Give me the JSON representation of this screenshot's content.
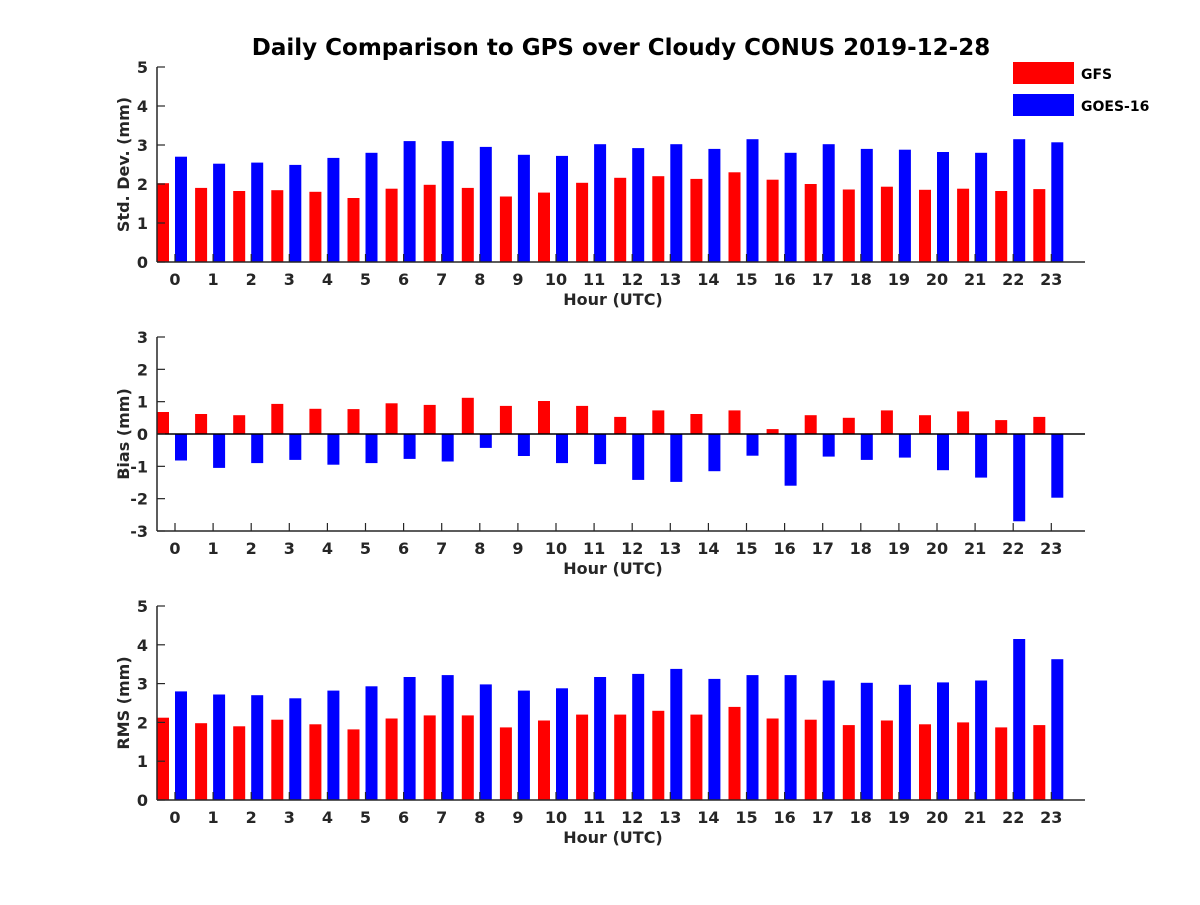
{
  "title": "Daily Comparison to GPS over Cloudy CONUS 2019-12-28",
  "legend": [
    {
      "name": "GFS",
      "color": "#ff0000"
    },
    {
      "name": "GOES-16",
      "color": "#0000ff"
    }
  ],
  "chart_data": [
    {
      "type": "bar",
      "ylabel": "Std. Dev. (mm)",
      "xlabel": "Hour (UTC)",
      "ylim": [
        0,
        5
      ],
      "yticks": [
        "0",
        "1",
        "2",
        "3",
        "4",
        "5"
      ],
      "categories": [
        "0",
        "1",
        "2",
        "3",
        "4",
        "5",
        "6",
        "7",
        "8",
        "9",
        "10",
        "11",
        "12",
        "13",
        "14",
        "15",
        "16",
        "17",
        "18",
        "19",
        "20",
        "21",
        "22",
        "23"
      ],
      "series": [
        {
          "name": "GFS",
          "color": "#ff0000",
          "values": [
            2.02,
            1.9,
            1.82,
            1.84,
            1.8,
            1.64,
            1.88,
            1.98,
            1.9,
            1.68,
            1.78,
            2.03,
            2.16,
            2.2,
            2.13,
            2.3,
            2.11,
            2.0,
            1.86,
            1.93,
            1.85,
            1.88,
            1.82,
            1.87
          ]
        },
        {
          "name": "GOES-16",
          "color": "#0000ff",
          "values": [
            2.7,
            2.52,
            2.55,
            2.49,
            2.67,
            2.8,
            3.1,
            3.1,
            2.95,
            2.75,
            2.72,
            3.02,
            2.92,
            3.02,
            2.9,
            3.15,
            2.8,
            3.02,
            2.9,
            2.88,
            2.82,
            2.8,
            3.15,
            3.07
          ]
        }
      ],
      "legend_position": "top-right"
    },
    {
      "type": "bar",
      "ylabel": "Bias (mm)",
      "xlabel": "Hour (UTC)",
      "ylim": [
        -3,
        3
      ],
      "yticks": [
        "-3",
        "-2",
        "-1",
        "0",
        "1",
        "2",
        "3"
      ],
      "zero_line": true,
      "categories": [
        "0",
        "1",
        "2",
        "3",
        "4",
        "5",
        "6",
        "7",
        "8",
        "9",
        "10",
        "11",
        "12",
        "13",
        "14",
        "15",
        "16",
        "17",
        "18",
        "19",
        "20",
        "21",
        "22",
        "23"
      ],
      "series": [
        {
          "name": "GFS",
          "color": "#ff0000",
          "values": [
            0.68,
            0.62,
            0.58,
            0.93,
            0.78,
            0.77,
            0.95,
            0.9,
            1.12,
            0.87,
            1.02,
            0.87,
            0.53,
            0.73,
            0.62,
            0.73,
            0.15,
            0.58,
            0.5,
            0.73,
            0.58,
            0.7,
            0.43,
            0.53
          ]
        },
        {
          "name": "GOES-16",
          "color": "#0000ff",
          "values": [
            -0.82,
            -1.05,
            -0.9,
            -0.8,
            -0.95,
            -0.9,
            -0.77,
            -0.85,
            -0.43,
            -0.68,
            -0.9,
            -0.93,
            -1.42,
            -1.48,
            -1.15,
            -0.67,
            -1.6,
            -0.7,
            -0.8,
            -0.73,
            -1.12,
            -1.35,
            -2.7,
            -1.97
          ]
        }
      ]
    },
    {
      "type": "bar",
      "ylabel": "RMS (mm)",
      "xlabel": "Hour (UTC)",
      "ylim": [
        0,
        5
      ],
      "yticks": [
        "0",
        "1",
        "2",
        "3",
        "4",
        "5"
      ],
      "categories": [
        "0",
        "1",
        "2",
        "3",
        "4",
        "5",
        "6",
        "7",
        "8",
        "9",
        "10",
        "11",
        "12",
        "13",
        "14",
        "15",
        "16",
        "17",
        "18",
        "19",
        "20",
        "21",
        "22",
        "23"
      ],
      "series": [
        {
          "name": "GFS",
          "color": "#ff0000",
          "values": [
            2.12,
            1.98,
            1.9,
            2.07,
            1.95,
            1.82,
            2.1,
            2.18,
            2.18,
            1.87,
            2.05,
            2.2,
            2.2,
            2.3,
            2.2,
            2.4,
            2.1,
            2.07,
            1.93,
            2.05,
            1.95,
            2.0,
            1.87,
            1.93
          ]
        },
        {
          "name": "GOES-16",
          "color": "#0000ff",
          "values": [
            2.8,
            2.72,
            2.7,
            2.62,
            2.82,
            2.93,
            3.17,
            3.22,
            2.98,
            2.82,
            2.88,
            3.17,
            3.25,
            3.38,
            3.12,
            3.22,
            3.22,
            3.08,
            3.02,
            2.97,
            3.03,
            3.08,
            4.15,
            3.63
          ]
        }
      ]
    }
  ]
}
